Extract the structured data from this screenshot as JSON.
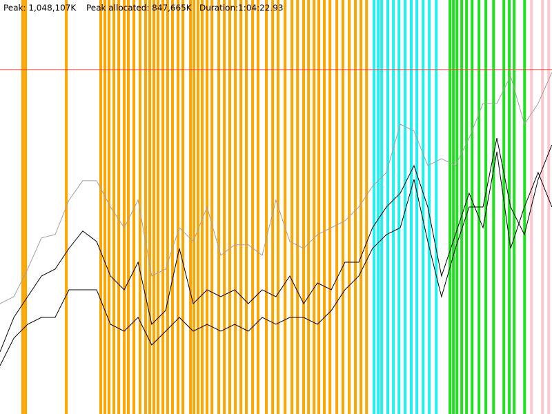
{
  "chart_data": {
    "type": "line",
    "texts": [
      "Peak: 1,048,107K",
      "Peak allocated: 847,665K",
      "Duration:1:04:22.93"
    ],
    "peak": 1048107,
    "peak_color": "#ff4040",
    "xlim": [
      0,
      3862.93
    ],
    "ylim": [
      0,
      1260000
    ],
    "x": [
      0,
      97,
      193,
      290,
      386,
      483,
      579,
      676,
      773,
      869,
      966,
      1062,
      1159,
      1255,
      1352,
      1449,
      1545,
      1642,
      1738,
      1835,
      1931,
      2028,
      2125,
      2221,
      2318,
      2414,
      2511,
      2607,
      2704,
      2801,
      2897,
      2994,
      3090,
      3187,
      3283,
      3380,
      3477,
      3573,
      3670,
      3766,
      3862
    ],
    "series": [
      {
        "color": "#a0a0a0",
        "values": [
          336000,
          357000,
          441000,
          536000,
          546000,
          651000,
          710000,
          710000,
          630000,
          567000,
          651000,
          420000,
          441000,
          567000,
          525000,
          630000,
          483000,
          515000,
          515000,
          483000,
          651000,
          525000,
          504000,
          546000,
          567000,
          588000,
          630000,
          693000,
          735000,
          882000,
          861000,
          756000,
          777000,
          756000,
          840000,
          945000,
          945000,
          1029000,
          882000,
          945000,
          1040000
        ]
      },
      {
        "color": "#000000",
        "values": [
          189000,
          294000,
          357000,
          420000,
          441000,
          504000,
          557000,
          525000,
          420000,
          378000,
          462000,
          273000,
          315000,
          504000,
          336000,
          378000,
          357000,
          378000,
          336000,
          378000,
          357000,
          420000,
          336000,
          399000,
          378000,
          462000,
          462000,
          567000,
          630000,
          672000,
          756000,
          630000,
          420000,
          546000,
          672000,
          567000,
          798000,
          504000,
          630000,
          735000,
          630000
        ]
      },
      {
        "color": "#000000",
        "values": [
          147000,
          231000,
          273000,
          294000,
          294000,
          378000,
          378000,
          378000,
          273000,
          252000,
          294000,
          210000,
          252000,
          294000,
          252000,
          273000,
          252000,
          273000,
          252000,
          294000,
          273000,
          294000,
          294000,
          273000,
          315000,
          378000,
          420000,
          504000,
          546000,
          567000,
          714000,
          525000,
          357000,
          504000,
          630000,
          630000,
          840000,
          630000,
          546000,
          714000,
          819000
        ]
      }
    ],
    "event_groups": [
      {
        "color": "#ffa500",
        "x": [
          159,
          179,
          464,
          705,
          734,
          763,
          797,
          831,
          869,
          898,
          937,
          980,
          1019,
          1048,
          1077,
          1106,
          1140,
          1173,
          1207,
          1246,
          1280,
          1333,
          1357,
          1386,
          1415,
          1449,
          1483,
          1531,
          1570,
          1608,
          1647,
          1686,
          1724,
          1768,
          1806,
          1864,
          1908,
          1946,
          1995,
          2043,
          2082,
          2125,
          2159,
          2198,
          2231,
          2270,
          2309,
          2357,
          2400,
          2444,
          2487,
          2526,
          2565
        ]
      },
      {
        "color": "#20f0f0",
        "x": [
          2618,
          2647,
          2671,
          2714,
          2753,
          2792,
          2835,
          2878,
          2917,
          2961,
          3004,
          3053
        ]
      },
      {
        "color": "#20e020",
        "x": [
          3149,
          3173,
          3198,
          3231,
          3265,
          3304,
          3352,
          3400,
          3454,
          3526,
          3564,
          3598,
          3671
        ]
      },
      {
        "color": "#ffc8d0",
        "x": [
          3719,
          3796,
          3840
        ]
      }
    ]
  }
}
